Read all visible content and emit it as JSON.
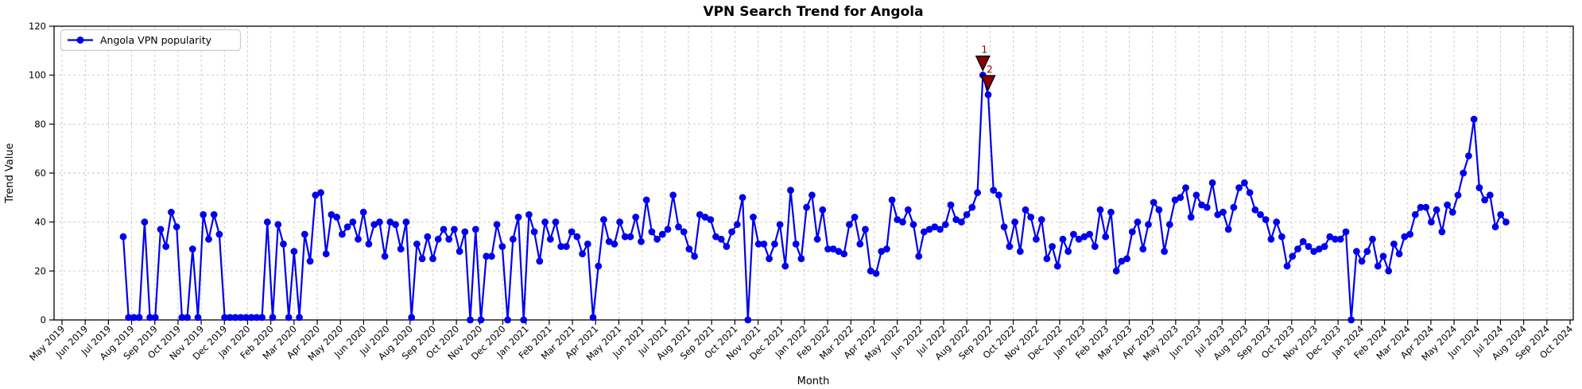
{
  "chart_data": {
    "type": "line",
    "title": "VPN Search Trend for Angola",
    "xlabel": "Month",
    "ylabel": "Trend Value",
    "ylim": [
      0,
      120
    ],
    "yticks": [
      0,
      20,
      40,
      60,
      80,
      100,
      120
    ],
    "grid": true,
    "legend_position": "upper left",
    "x_frequency": "weekly",
    "x_first_point": "Jul 2019",
    "x_last_point": "Jul 2024",
    "x_tick_labels": [
      "May 2019",
      "Jun 2019",
      "Jul 2019",
      "Aug 2019",
      "Sep 2019",
      "Oct 2019",
      "Nov 2019",
      "Dec 2019",
      "Jan 2020",
      "Feb 2020",
      "Mar 2020",
      "Apr 2020",
      "May 2020",
      "Jun 2020",
      "Jul 2020",
      "Aug 2020",
      "Sep 2020",
      "Oct 2020",
      "Nov 2020",
      "Dec 2020",
      "Jan 2021",
      "Feb 2021",
      "Mar 2021",
      "Apr 2021",
      "May 2021",
      "Jun 2021",
      "Jul 2021",
      "Aug 2021",
      "Sep 2021",
      "Oct 2021",
      "Nov 2021",
      "Dec 2021",
      "Jan 2022",
      "Feb 2022",
      "Mar 2022",
      "Apr 2022",
      "May 2022",
      "Jun 2022",
      "Jul 2022",
      "Aug 2022",
      "Sep 2022",
      "Oct 2022",
      "Nov 2022",
      "Dec 2022",
      "Jan 2023",
      "Feb 2023",
      "Mar 2023",
      "Apr 2023",
      "May 2023",
      "Jun 2023",
      "Jul 2023",
      "Aug 2023",
      "Sep 2023",
      "Oct 2023",
      "Nov 2023",
      "Dec 2023",
      "Jan 2024",
      "Feb 2024",
      "Mar 2024",
      "Apr 2024",
      "May 2024",
      "Jun 2024",
      "Jul 2024",
      "Aug 2024",
      "Sep 2024",
      "Oct 2024"
    ],
    "series": [
      {
        "name": "Angola VPN popularity",
        "values": [
          34,
          1,
          1,
          1,
          40,
          1,
          1,
          37,
          30,
          44,
          38,
          1,
          1,
          29,
          1,
          43,
          33,
          43,
          35,
          1,
          1,
          1,
          1,
          1,
          1,
          1,
          1,
          40,
          1,
          39,
          31,
          1,
          28,
          1,
          35,
          24,
          51,
          52,
          27,
          43,
          42,
          35,
          38,
          40,
          33,
          44,
          31,
          39,
          40,
          26,
          40,
          39,
          29,
          40,
          1,
          31,
          25,
          34,
          25,
          33,
          37,
          33,
          37,
          28,
          36,
          0,
          37,
          0,
          26,
          26,
          39,
          30,
          0,
          33,
          42,
          0,
          43,
          36,
          24,
          40,
          33,
          40,
          30,
          30,
          36,
          34,
          27,
          31,
          1,
          22,
          41,
          32,
          31,
          40,
          34,
          34,
          42,
          32,
          49,
          36,
          33,
          35,
          37,
          51,
          38,
          36,
          29,
          26,
          43,
          42,
          41,
          34,
          33,
          30,
          36,
          39,
          50,
          0,
          42,
          31,
          31,
          25,
          31,
          39,
          22,
          53,
          31,
          25,
          46,
          51,
          33,
          45,
          29,
          29,
          28,
          27,
          39,
          42,
          31,
          37,
          20,
          19,
          28,
          29,
          49,
          41,
          40,
          45,
          39,
          26,
          36,
          37,
          38,
          37,
          39,
          47,
          41,
          40,
          43,
          46,
          52,
          100,
          92,
          53,
          51,
          38,
          30,
          40,
          28,
          45,
          42,
          33,
          41,
          25,
          30,
          22,
          33,
          28,
          35,
          33,
          34,
          35,
          30,
          45,
          34,
          44,
          20,
          24,
          25,
          36,
          40,
          29,
          39,
          48,
          45,
          28,
          39,
          49,
          50,
          54,
          42,
          51,
          47,
          46,
          56,
          43,
          44,
          37,
          46,
          54,
          56,
          52,
          45,
          43,
          41,
          33,
          40,
          34,
          22,
          26,
          29,
          32,
          30,
          28,
          29,
          30,
          34,
          33,
          33,
          36,
          0,
          28,
          24,
          28,
          33,
          22,
          26,
          20,
          31,
          27,
          34,
          35,
          43,
          46,
          46,
          40,
          45,
          36,
          47,
          44,
          51,
          60,
          67,
          82,
          54,
          49,
          51,
          38,
          43,
          40
        ]
      }
    ],
    "annotations": [
      {
        "label": "1",
        "point_index": 161,
        "value": 100
      },
      {
        "label": "2",
        "point_index": 162,
        "value": 92
      }
    ],
    "legend": {
      "label": "Angola VPN popularity"
    },
    "colors": {
      "line": "#0000ee",
      "marker": "#0000ee",
      "annotation_fill": "#8b0000",
      "annotation_edge": "#000000",
      "annotation_text": "#8b0000",
      "grid": "#c8c8c8",
      "spine": "#000000",
      "background": "#ffffff",
      "legend_border": "#cccccc"
    }
  }
}
